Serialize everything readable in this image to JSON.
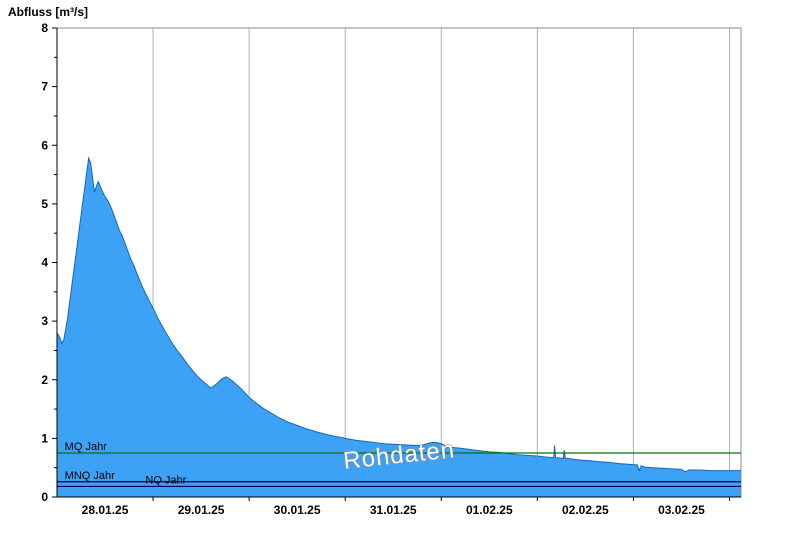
{
  "chart": {
    "title": "Abfluss [m³/s]"
  },
  "chart_data": {
    "type": "area",
    "title": "Abfluss [m³/s]",
    "ylabel": "Abfluss [m³/s]",
    "xlim": [
      0,
      7.12
    ],
    "ylim": [
      0,
      8
    ],
    "y_ticks": [
      0,
      1,
      2,
      3,
      4,
      5,
      6,
      7,
      8
    ],
    "x_gridlines": [
      1,
      2,
      3,
      4,
      5,
      6,
      7
    ],
    "x_tick_labels": [
      {
        "t": 0.5,
        "label": "28.01.25"
      },
      {
        "t": 1.5,
        "label": "29.01.25"
      },
      {
        "t": 2.5,
        "label": "30.01.25"
      },
      {
        "t": 3.5,
        "label": "31.01.25"
      },
      {
        "t": 4.5,
        "label": "01.02.25"
      },
      {
        "t": 5.5,
        "label": "02.02.25"
      },
      {
        "t": 6.5,
        "label": "03.02.25"
      }
    ],
    "reference_lines": [
      {
        "label": "MQ Jahr",
        "value": 0.75,
        "color": "#007a00",
        "label_t": 0.08
      },
      {
        "label": "MNQ Jahr",
        "value": 0.26,
        "color": "#000050",
        "label_t": 0.08
      },
      {
        "label": "NQ Jahr",
        "value": 0.18,
        "color": "#000050",
        "label_t": 0.92
      }
    ],
    "watermark": {
      "text": "Rohdaten",
      "t": 3.57,
      "value": 0.58,
      "rotation": -6
    },
    "colors": {
      "fill": "#3da2f5",
      "stroke": "#1668b4",
      "grid": "#a9b2ba",
      "axis": "#000000",
      "border": "#8c8c8c",
      "watermark_fill": "#ffffff",
      "watermark_outline": "#8a8a8a"
    },
    "series": [
      {
        "name": "Rohdaten",
        "points": [
          [
            0.0,
            2.8
          ],
          [
            0.03,
            2.72
          ],
          [
            0.05,
            2.62
          ],
          [
            0.07,
            2.68
          ],
          [
            0.09,
            2.85
          ],
          [
            0.11,
            3.05
          ],
          [
            0.13,
            3.3
          ],
          [
            0.15,
            3.55
          ],
          [
            0.17,
            3.8
          ],
          [
            0.19,
            4.05
          ],
          [
            0.21,
            4.3
          ],
          [
            0.23,
            4.55
          ],
          [
            0.25,
            4.8
          ],
          [
            0.27,
            5.05
          ],
          [
            0.29,
            5.3
          ],
          [
            0.31,
            5.55
          ],
          [
            0.33,
            5.78
          ],
          [
            0.35,
            5.7
          ],
          [
            0.37,
            5.45
          ],
          [
            0.39,
            5.2
          ],
          [
            0.41,
            5.3
          ],
          [
            0.43,
            5.38
          ],
          [
            0.45,
            5.3
          ],
          [
            0.47,
            5.22
          ],
          [
            0.5,
            5.12
          ],
          [
            0.53,
            5.05
          ],
          [
            0.56,
            4.95
          ],
          [
            0.59,
            4.82
          ],
          [
            0.62,
            4.68
          ],
          [
            0.65,
            4.55
          ],
          [
            0.68,
            4.45
          ],
          [
            0.71,
            4.32
          ],
          [
            0.74,
            4.18
          ],
          [
            0.77,
            4.05
          ],
          [
            0.8,
            3.95
          ],
          [
            0.83,
            3.82
          ],
          [
            0.86,
            3.7
          ],
          [
            0.89,
            3.58
          ],
          [
            0.92,
            3.48
          ],
          [
            0.95,
            3.38
          ],
          [
            1.0,
            3.22
          ],
          [
            1.05,
            3.05
          ],
          [
            1.1,
            2.9
          ],
          [
            1.15,
            2.76
          ],
          [
            1.2,
            2.62
          ],
          [
            1.25,
            2.5
          ],
          [
            1.3,
            2.4
          ],
          [
            1.35,
            2.28
          ],
          [
            1.4,
            2.18
          ],
          [
            1.45,
            2.08
          ],
          [
            1.5,
            2.0
          ],
          [
            1.55,
            1.93
          ],
          [
            1.6,
            1.86
          ],
          [
            1.64,
            1.9
          ],
          [
            1.68,
            1.96
          ],
          [
            1.72,
            2.02
          ],
          [
            1.76,
            2.05
          ],
          [
            1.8,
            2.01
          ],
          [
            1.84,
            1.96
          ],
          [
            1.88,
            1.9
          ],
          [
            1.92,
            1.84
          ],
          [
            1.96,
            1.77
          ],
          [
            2.0,
            1.7
          ],
          [
            2.05,
            1.63
          ],
          [
            2.1,
            1.57
          ],
          [
            2.15,
            1.51
          ],
          [
            2.2,
            1.46
          ],
          [
            2.25,
            1.41
          ],
          [
            2.3,
            1.36
          ],
          [
            2.35,
            1.32
          ],
          [
            2.4,
            1.28
          ],
          [
            2.45,
            1.25
          ],
          [
            2.5,
            1.22
          ],
          [
            2.55,
            1.19
          ],
          [
            2.6,
            1.16
          ],
          [
            2.65,
            1.14
          ],
          [
            2.7,
            1.11
          ],
          [
            2.75,
            1.09
          ],
          [
            2.8,
            1.07
          ],
          [
            2.85,
            1.05
          ],
          [
            2.9,
            1.03
          ],
          [
            2.95,
            1.02
          ],
          [
            3.0,
            1.0
          ],
          [
            3.1,
            0.97
          ],
          [
            3.2,
            0.95
          ],
          [
            3.3,
            0.93
          ],
          [
            3.4,
            0.91
          ],
          [
            3.5,
            0.9
          ],
          [
            3.6,
            0.89
          ],
          [
            3.7,
            0.88
          ],
          [
            3.8,
            0.88
          ],
          [
            3.85,
            0.91
          ],
          [
            3.9,
            0.93
          ],
          [
            3.95,
            0.93
          ],
          [
            4.0,
            0.91
          ],
          [
            4.05,
            0.87
          ],
          [
            4.1,
            0.85
          ],
          [
            4.2,
            0.83
          ],
          [
            4.3,
            0.81
          ],
          [
            4.4,
            0.79
          ],
          [
            4.5,
            0.77
          ],
          [
            4.6,
            0.76
          ],
          [
            4.7,
            0.74
          ],
          [
            4.8,
            0.72
          ],
          [
            4.9,
            0.71
          ],
          [
            5.0,
            0.7
          ],
          [
            5.1,
            0.68
          ],
          [
            5.17,
            0.67
          ],
          [
            5.18,
            0.88
          ],
          [
            5.19,
            0.67
          ],
          [
            5.27,
            0.66
          ],
          [
            5.28,
            0.8
          ],
          [
            5.29,
            0.66
          ],
          [
            5.35,
            0.65
          ],
          [
            5.45,
            0.63
          ],
          [
            5.55,
            0.62
          ],
          [
            5.65,
            0.6
          ],
          [
            5.75,
            0.59
          ],
          [
            5.85,
            0.57
          ],
          [
            5.95,
            0.56
          ],
          [
            6.0,
            0.55
          ],
          [
            6.04,
            0.55
          ],
          [
            6.06,
            0.45
          ],
          [
            6.08,
            0.53
          ],
          [
            6.12,
            0.51
          ],
          [
            6.2,
            0.5
          ],
          [
            6.3,
            0.49
          ],
          [
            6.4,
            0.48
          ],
          [
            6.5,
            0.47
          ],
          [
            6.54,
            0.43
          ],
          [
            6.58,
            0.46
          ],
          [
            6.7,
            0.46
          ],
          [
            6.8,
            0.45
          ],
          [
            6.9,
            0.45
          ],
          [
            7.0,
            0.45
          ],
          [
            7.12,
            0.45
          ]
        ]
      }
    ]
  }
}
